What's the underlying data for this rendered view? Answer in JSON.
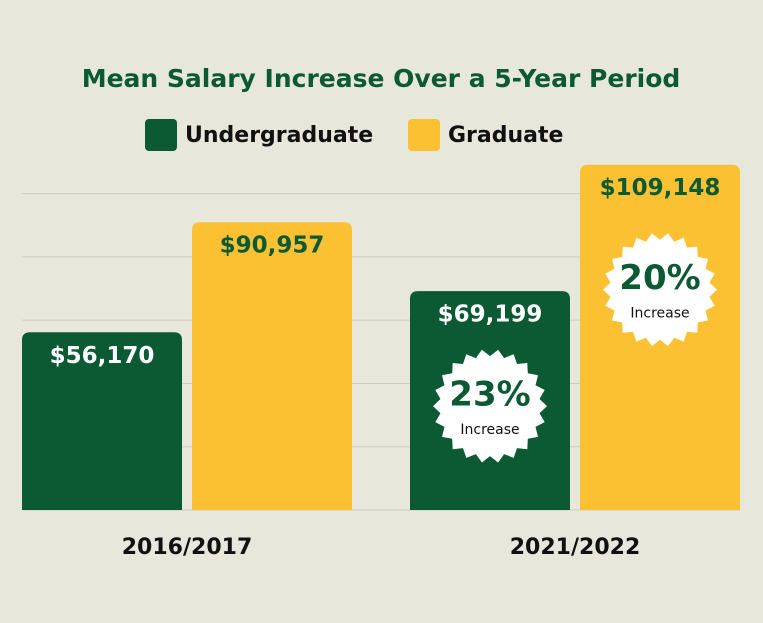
{
  "chart_data": {
    "type": "bar",
    "title": "Mean Salary Increase Over a 5-Year Period",
    "categories": [
      "2016/2017",
      "2021/2022"
    ],
    "series": [
      {
        "name": "Undergraduate",
        "color": "#0b5a33",
        "values": [
          56170,
          69199
        ],
        "value_labels": [
          "$56,170",
          "$69,199"
        ],
        "label_color": "#ffffff"
      },
      {
        "name": "Graduate",
        "color": "#fbc132",
        "values": [
          90957,
          109148
        ],
        "value_labels": [
          "$90,957",
          "$109,148"
        ],
        "label_color": "#0b5a33"
      }
    ],
    "annotations": [
      {
        "label": "23%",
        "sublabel": "Increase"
      },
      {
        "label": "20%",
        "sublabel": "Increase"
      }
    ],
    "ylim": [
      0,
      110000
    ],
    "yticks": [
      0,
      20000,
      40000,
      60000,
      80000,
      100000
    ],
    "grid": true
  }
}
